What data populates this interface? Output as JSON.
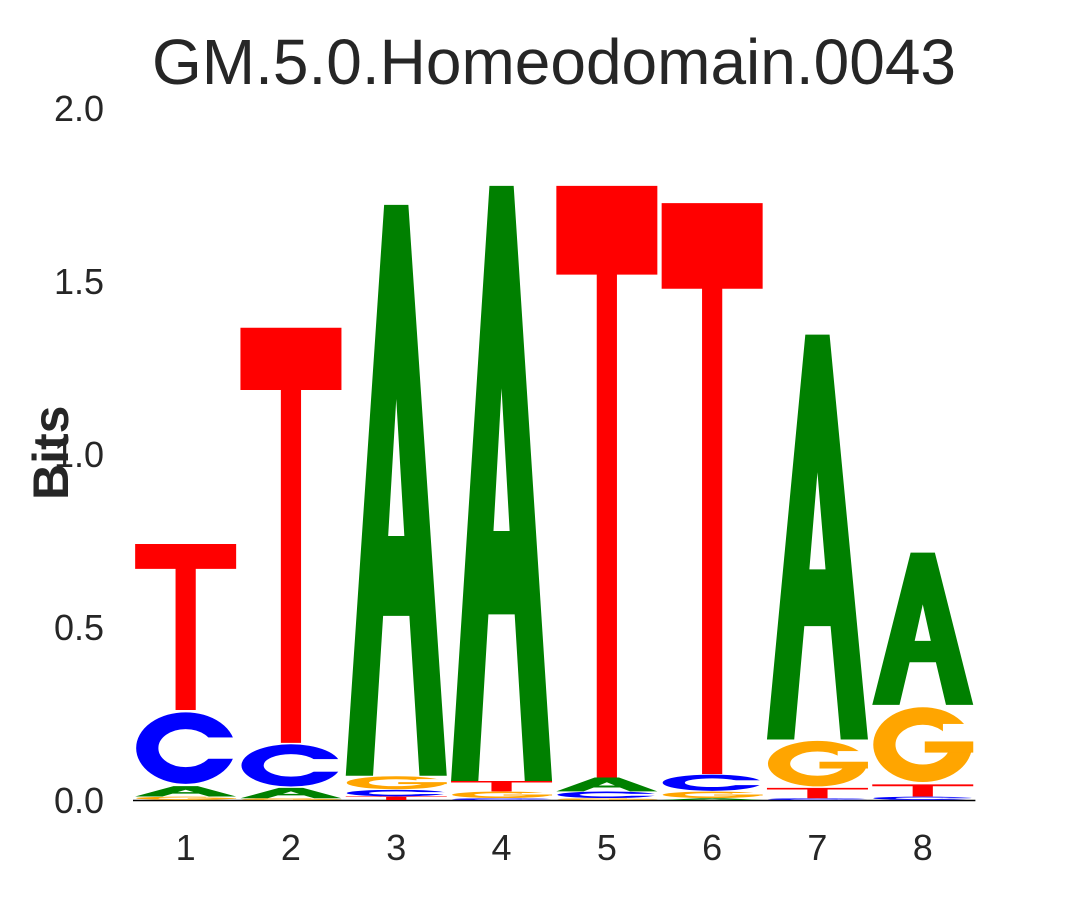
{
  "chart_data": {
    "type": "sequence-logo",
    "title": "GM.5.0.Homeodomain.0043",
    "ylabel": "Bits",
    "xlabel": "",
    "ylim": [
      0,
      2
    ],
    "yticks": [
      "0.0",
      "0.5",
      "1.0",
      "1.5",
      "2.0"
    ],
    "ytick_values": [
      0,
      0.5,
      1.0,
      1.5,
      2.0
    ],
    "positions": [
      "1",
      "2",
      "3",
      "4",
      "5",
      "6",
      "7",
      "8"
    ],
    "grid": false,
    "colors": {
      "A": "#008000",
      "C": "#0000ff",
      "G": "#ffa500",
      "T": "#ff0000"
    },
    "columns": [
      {
        "position": "1",
        "stack": [
          {
            "letter": "G",
            "height": 0.01
          },
          {
            "letter": "A",
            "height": 0.03
          },
          {
            "letter": "C",
            "height": 0.22
          },
          {
            "letter": "T",
            "height": 0.48
          }
        ]
      },
      {
        "position": "2",
        "stack": [
          {
            "letter": "G",
            "height": 0.005
          },
          {
            "letter": "A",
            "height": 0.03
          },
          {
            "letter": "C",
            "height": 0.13
          },
          {
            "letter": "T",
            "height": 1.2
          }
        ]
      },
      {
        "position": "3",
        "stack": [
          {
            "letter": "T",
            "height": 0.01
          },
          {
            "letter": "C",
            "height": 0.02
          },
          {
            "letter": "G",
            "height": 0.04
          },
          {
            "letter": "A",
            "height": 1.65
          }
        ]
      },
      {
        "position": "4",
        "stack": [
          {
            "letter": "C",
            "height": 0.005
          },
          {
            "letter": "G",
            "height": 0.02
          },
          {
            "letter": "T",
            "height": 0.03
          },
          {
            "letter": "A",
            "height": 1.72
          }
        ]
      },
      {
        "position": "5",
        "stack": [
          {
            "letter": "G",
            "height": 0.005
          },
          {
            "letter": "C",
            "height": 0.02
          },
          {
            "letter": "A",
            "height": 0.04
          },
          {
            "letter": "T",
            "height": 1.71
          }
        ]
      },
      {
        "position": "6",
        "stack": [
          {
            "letter": "A",
            "height": 0.005
          },
          {
            "letter": "G",
            "height": 0.02
          },
          {
            "letter": "C",
            "height": 0.05
          },
          {
            "letter": "T",
            "height": 1.65
          }
        ]
      },
      {
        "position": "7",
        "stack": [
          {
            "letter": "C",
            "height": 0.005
          },
          {
            "letter": "T",
            "height": 0.03
          },
          {
            "letter": "G",
            "height": 0.14
          },
          {
            "letter": "A",
            "height": 1.17
          }
        ]
      },
      {
        "position": "8",
        "stack": [
          {
            "letter": "C",
            "height": 0.01
          },
          {
            "letter": "T",
            "height": 0.035
          },
          {
            "letter": "G",
            "height": 0.23
          },
          {
            "letter": "A",
            "height": 0.44
          }
        ]
      }
    ]
  }
}
